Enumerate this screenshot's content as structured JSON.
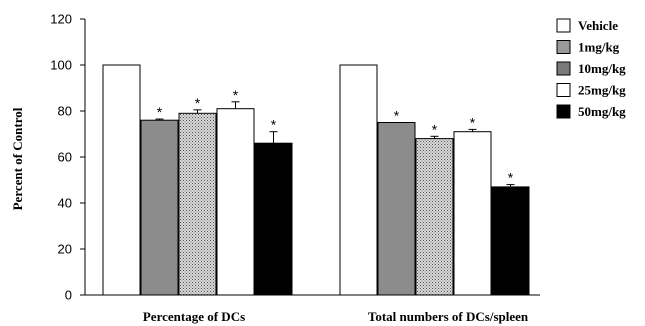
{
  "chart_data": {
    "type": "bar",
    "ylabel": "Percent of Control",
    "ylim": [
      0,
      120
    ],
    "yticks": [
      0,
      20,
      40,
      60,
      80,
      100,
      120
    ],
    "categories": [
      "Percentage of DCs",
      "Total numbers of DCs/spleen"
    ],
    "legend_position": "right",
    "grid": false,
    "significance_marker": "*",
    "series": [
      {
        "name": "Vehicle",
        "values": [
          100,
          100
        ],
        "errors": [
          0,
          0
        ],
        "significant": [
          false,
          false
        ],
        "fill": "#ffffff",
        "pattern": "solid"
      },
      {
        "name": "1mg/kg",
        "values": [
          76,
          75
        ],
        "errors": [
          0.5,
          0
        ],
        "significant": [
          true,
          true
        ],
        "fill": "#8c8c8c",
        "pattern": "solid"
      },
      {
        "name": "10mg/kg",
        "values": [
          79,
          68
        ],
        "errors": [
          1.5,
          1
        ],
        "significant": [
          true,
          true
        ],
        "fill": "#c4c4c4",
        "pattern": "dots"
      },
      {
        "name": "25mg/kg",
        "values": [
          81,
          71
        ],
        "errors": [
          3,
          1
        ],
        "significant": [
          true,
          true
        ],
        "fill": "#ffffff",
        "pattern": "solid"
      },
      {
        "name": "50mg/kg",
        "values": [
          66,
          47
        ],
        "errors": [
          5,
          1
        ],
        "significant": [
          true,
          true
        ],
        "fill": "#000000",
        "pattern": "solid"
      }
    ],
    "legend_order": [
      {
        "label": "Vehicle",
        "fill": "#ffffff",
        "pattern": "solid"
      },
      {
        "label": "1mg/kg",
        "fill": "#9a9a9a",
        "pattern": "solid"
      },
      {
        "label": "10mg/kg",
        "fill": "#7a7a7a",
        "pattern": "solid"
      },
      {
        "label": "25mg/kg",
        "fill": "#ffffff",
        "pattern": "solid"
      },
      {
        "label": "50mg/kg",
        "fill": "#000000",
        "pattern": "solid"
      }
    ]
  }
}
